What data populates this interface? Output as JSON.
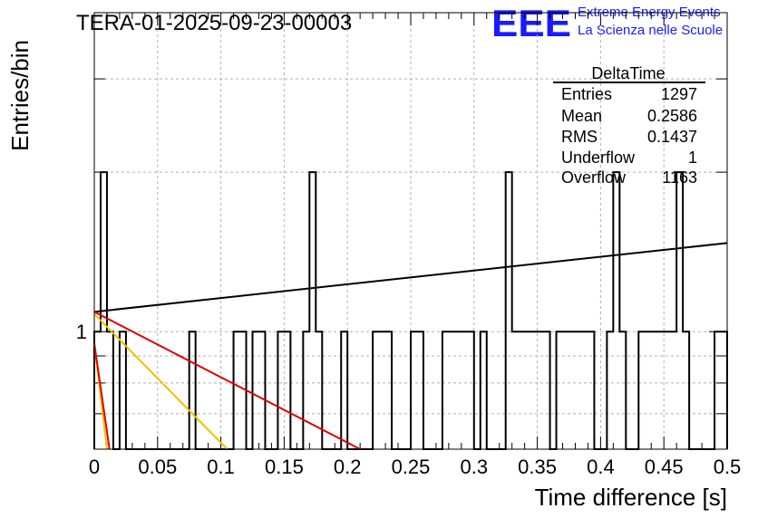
{
  "header": {
    "run_title": "TERA-01-2025-09-23-00003",
    "logo_text": "EEE",
    "logo_line1": "Extreme Energy Events",
    "logo_line2": "La Scienza nelle Scuole",
    "logo_color": "#1a1aff"
  },
  "stats_box": {
    "title": "DeltaTime",
    "rows": [
      {
        "label": "Entries",
        "value": "1297"
      },
      {
        "label": "Mean",
        "value": "0.2586"
      },
      {
        "label": "RMS",
        "value": "0.1437"
      },
      {
        "label": "Underflow",
        "value": "1"
      },
      {
        "label": "Overflow",
        "value": "1163"
      }
    ]
  },
  "chart_data": {
    "type": "histogram",
    "title": "TERA-01-2025-09-23-00003",
    "xlabel": "Time difference [s]",
    "ylabel": "Entries/bin",
    "xlim": [
      0,
      0.5
    ],
    "ylim": [
      0.6,
      4.0
    ],
    "y_scale": "log",
    "grid": true,
    "x_ticks": [
      "0",
      "0.05",
      "0.1",
      "0.15",
      "0.2",
      "0.25",
      "0.3",
      "0.35",
      "0.4",
      "0.45",
      "0.5"
    ],
    "y_tick_labels": [
      {
        "value": 1,
        "label": "1"
      }
    ],
    "bin_width": 0.005,
    "bin_counts": [
      1,
      2,
      1,
      0,
      1,
      0,
      0,
      0,
      0,
      0,
      0,
      0,
      0,
      0,
      0,
      1,
      0,
      0,
      0,
      0,
      0,
      0,
      1,
      1,
      0,
      1,
      1,
      0,
      0,
      1,
      1,
      0,
      0,
      1,
      2,
      1,
      0,
      0,
      0,
      1,
      0,
      0,
      0,
      0,
      1,
      1,
      1,
      0,
      0,
      0,
      1,
      1,
      0,
      0,
      0,
      1,
      1,
      1,
      1,
      1,
      0,
      1,
      0,
      0,
      0,
      2,
      1,
      1,
      1,
      1,
      1,
      1,
      0,
      1,
      1,
      1,
      1,
      1,
      1,
      0,
      0,
      1,
      2,
      1,
      0,
      0,
      1,
      1,
      1,
      1,
      1,
      1,
      2,
      1,
      0,
      0,
      0,
      0,
      1,
      1
    ],
    "fits": [
      {
        "color": "#000000",
        "x": [
          0.0,
          0.5
        ],
        "y": [
          1.09,
          1.47
        ]
      },
      {
        "color": "#e00000",
        "x": [
          0.0,
          0.21
        ],
        "y": [
          1.09,
          0.6
        ]
      },
      {
        "color": "#f0c000",
        "x": [
          0.0,
          0.105
        ],
        "y": [
          1.08,
          0.6
        ]
      },
      {
        "color": "#f0c000",
        "x": [
          0.0,
          0.01
        ],
        "y": [
          0.95,
          0.6
        ]
      },
      {
        "color": "#e00000",
        "x": [
          0.0,
          0.012
        ],
        "y": [
          0.95,
          0.6
        ]
      }
    ]
  }
}
